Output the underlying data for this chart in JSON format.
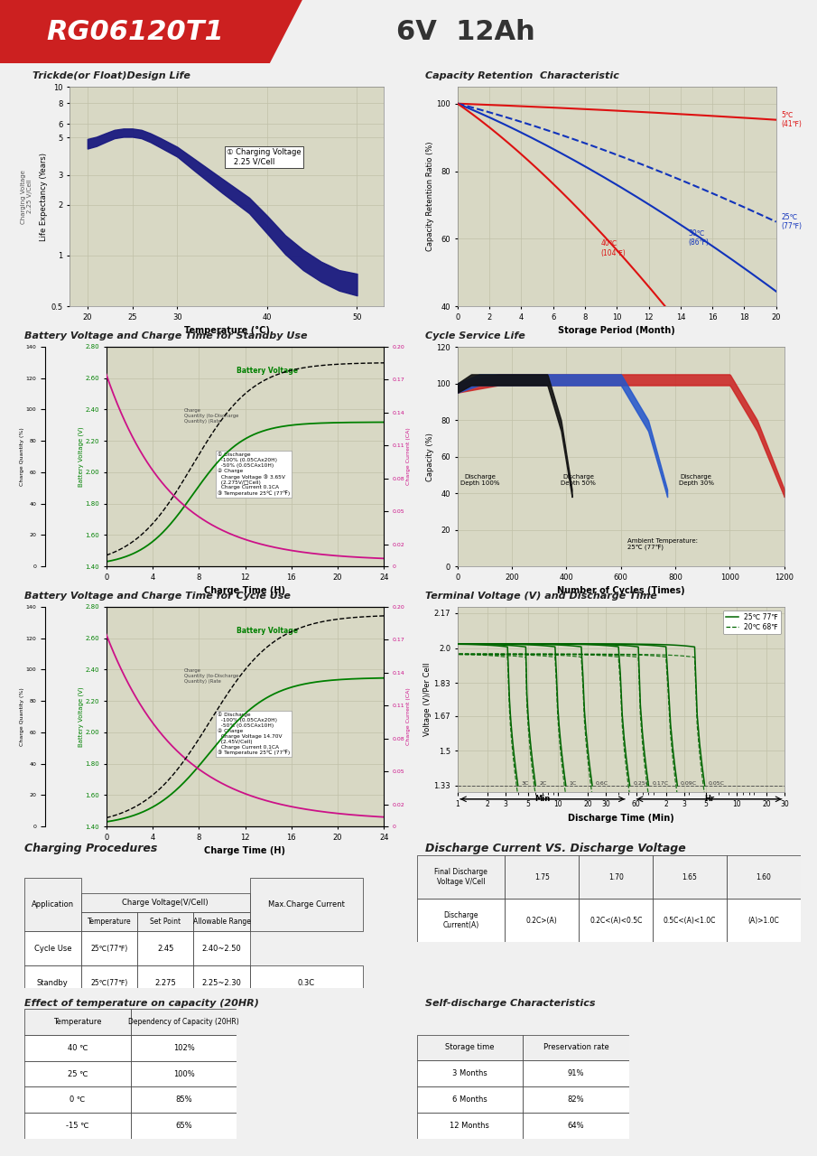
{
  "title_model": "RG06120T1",
  "title_spec": "6V  12Ah",
  "chart1_title": "Trickde(or Float)Design Life",
  "chart1_xlabel": "Temperature (°C)",
  "chart1_ylabel": "Life Expectancy (Years)",
  "chart2_title": "Capacity Retention  Characteristic",
  "chart2_xlabel": "Storage Period (Month)",
  "chart2_ylabel": "Capacity Retention Ratio (%)",
  "chart3_title": "Battery Voltage and Charge Time for Standby Use",
  "chart3_xlabel": "Charge Time (H)",
  "chart4_title": "Cycle Service Life",
  "chart4_xlabel": "Number of Cycles (Times)",
  "chart4_ylabel": "Capacity (%)",
  "chart5_title": "Battery Voltage and Charge Time for Cycle Use",
  "chart5_xlabel": "Charge Time (H)",
  "chart6_title": "Terminal Voltage (V) and Discharge Time",
  "chart6_xlabel": "Discharge Time (Min)",
  "chart6_ylabel": "Voltage (V)/Per Cell",
  "charging_procedures_title": "Charging Procedures",
  "discharge_current_title": "Discharge Current VS. Discharge Voltage",
  "temp_capacity_title": "Effect of temperature on capacity (20HR)",
  "self_discharge_title": "Self-discharge Characteristics"
}
